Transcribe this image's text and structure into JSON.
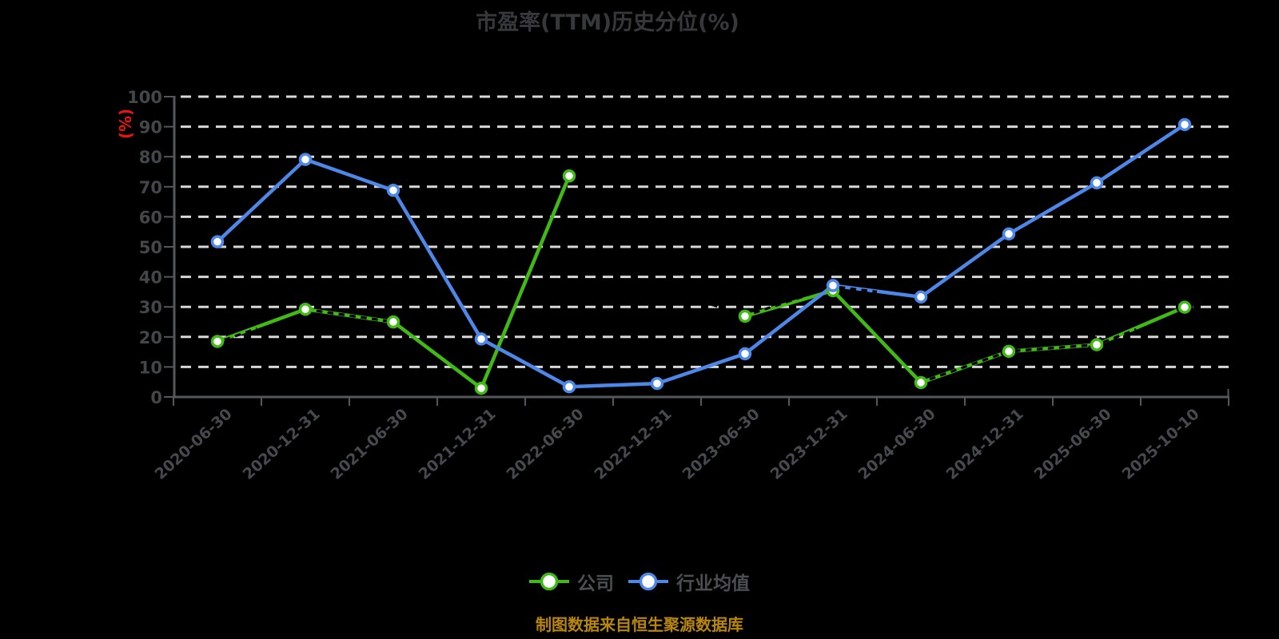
{
  "page": {
    "background": "#000000"
  },
  "title": {
    "text": "市盈率(TTM)历史分位(%)",
    "color": "#36393c"
  },
  "y_axis": {
    "unit_label": "(%)",
    "unit_color": "#ee1212",
    "labels": [
      "0",
      "10",
      "20",
      "30",
      "40",
      "50",
      "60",
      "70",
      "80",
      "90",
      "100"
    ],
    "label_color": "#44474a",
    "axis_color": "#54575b",
    "grid_color": "#d8d8d8"
  },
  "x_axis": {
    "label_color": "#46494d"
  },
  "legend": {
    "text_color": "#4b4e52",
    "items": [
      {
        "label": "公司",
        "color": "#41ba15"
      },
      {
        "label": "行业均值",
        "color": "#4d87e8"
      }
    ]
  },
  "footer": {
    "text": "制图数据来自恒生聚源数据库",
    "color": "#b8860b"
  },
  "chart_data": {
    "type": "line",
    "title": "市盈率(TTM)历史分位(%)",
    "ylabel": "(%)",
    "ylim": [
      0,
      100
    ],
    "y_tick_step": 10,
    "grid": "horizontal white dashed lines on black",
    "legend_position": "bottom",
    "marker": "circle, white fill, colored ring",
    "categories": [
      "2020-06-30",
      "2020-12-31",
      "2021-06-30",
      "2021-12-31",
      "2022-06-30",
      "2022-12-31",
      "2023-06-30",
      "2023-12-31",
      "2024-06-30",
      "2024-12-31",
      "2025-06-30",
      "2025-10-10"
    ],
    "series": [
      {
        "name": "公司",
        "color": "#41ba15",
        "values": [
          18.5,
          29.2,
          25.0,
          2.9,
          73.6,
          null,
          26.9,
          35.4,
          4.8,
          15.2,
          17.4,
          29.9
        ]
      },
      {
        "name": "行业均值",
        "color": "#4d87e8",
        "values": [
          51.7,
          79.1,
          68.8,
          19.3,
          3.4,
          4.5,
          14.4,
          37.1,
          33.3,
          54.3,
          71.3,
          90.7
        ]
      }
    ],
    "overlay_dashes": {
      "note": "faint black dashed traces visible on top of the colored lines",
      "color": "#000000",
      "segments": [
        [
          [
            0.08,
            19.0
          ],
          [
            0.45,
            22.8
          ]
        ],
        [
          [
            1,
            29.2
          ],
          [
            2,
            25.0
          ],
          [
            2.5,
            22.8
          ]
        ],
        [
          [
            5.62,
            30.8
          ],
          [
            6,
            27.0
          ],
          [
            7,
            36.8
          ],
          [
            7.5,
            35.0
          ]
        ],
        [
          [
            8.1,
            5.9
          ],
          [
            9,
            15.2
          ],
          [
            10,
            17.4
          ],
          [
            10.45,
            22.5
          ]
        ]
      ],
      "marker_rings": [
        [
          9,
          15.2
        ],
        [
          10,
          17.4
        ],
        [
          11,
          29.9
        ]
      ]
    }
  }
}
